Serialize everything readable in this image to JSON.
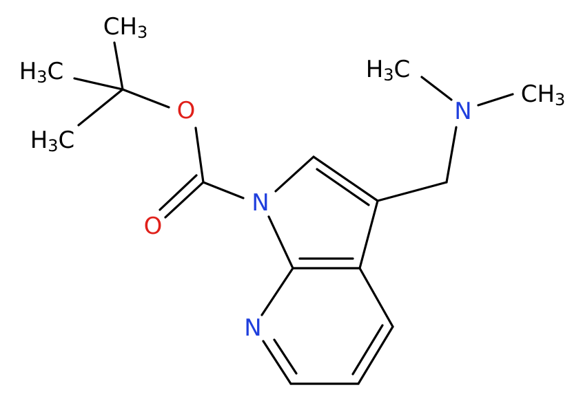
{
  "atoms": [
    {
      "label": "CH3"
    },
    {
      "label": "H3C"
    },
    {
      "label": "H3C"
    },
    {
      "label": "O"
    },
    {
      "label": "O"
    },
    {
      "label": "N"
    },
    {
      "label": "N"
    },
    {
      "label": "H3C"
    },
    {
      "label": "N"
    },
    {
      "label": "CH3"
    }
  ]
}
